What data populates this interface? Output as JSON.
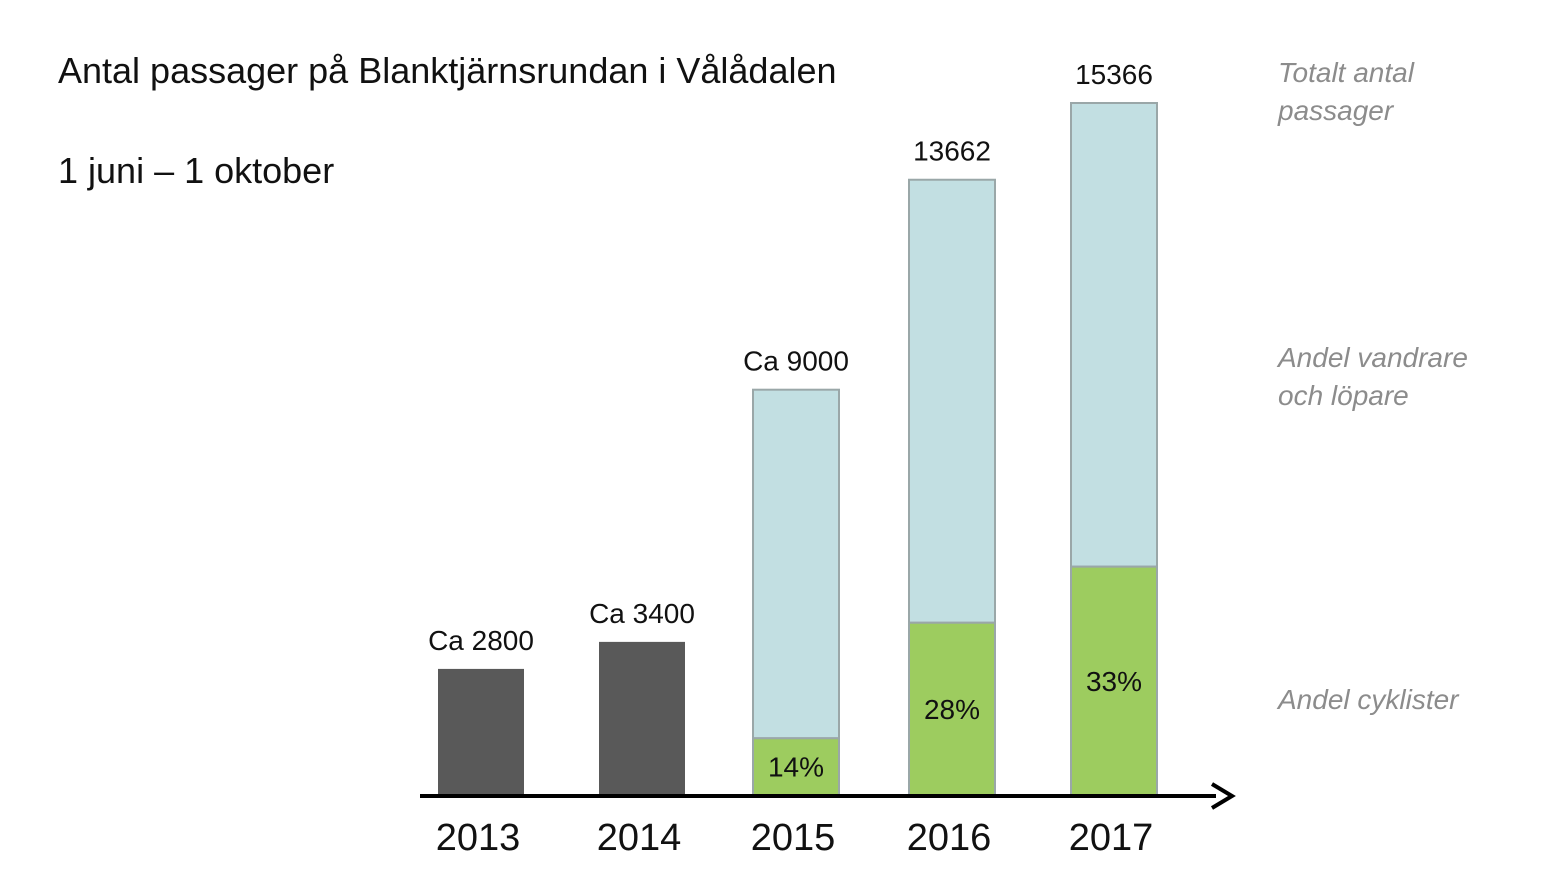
{
  "title": "Antal passager på Blanktjärnsrundan i Vålådalen",
  "subtitle": "1 juni – 1 oktober",
  "legend": {
    "total": [
      "Totalt antal",
      "passager"
    ],
    "hikers": [
      "Andel vandrare",
      "och löpare"
    ],
    "cyclists": [
      "Andel cyklister"
    ]
  },
  "colors": {
    "total_only": "#595959",
    "hikers": "#c2dfe2",
    "cyclists": "#9dcc5f",
    "bar_border": "#9aa7a8",
    "axis": "#000000"
  },
  "chart_data": {
    "type": "bar",
    "stacked": true,
    "categories": [
      "2013",
      "2014",
      "2015",
      "2016",
      "2017"
    ],
    "totals": [
      2800,
      3400,
      9000,
      13662,
      15366
    ],
    "total_labels": [
      "Ca 2800",
      "Ca 3400",
      "Ca 9000",
      "13662",
      "15366"
    ],
    "cyclist_share": [
      null,
      null,
      0.14,
      0.28,
      0.33
    ],
    "cyclist_labels": [
      "",
      "",
      "14%",
      "28%",
      "33%"
    ],
    "series": [
      {
        "name": "Andel cyklister",
        "key": "cyclists"
      },
      {
        "name": "Andel vandrare och löpare",
        "key": "hikers"
      }
    ],
    "ylim": [
      0,
      15366
    ],
    "grid": false,
    "legend_position": "right"
  }
}
